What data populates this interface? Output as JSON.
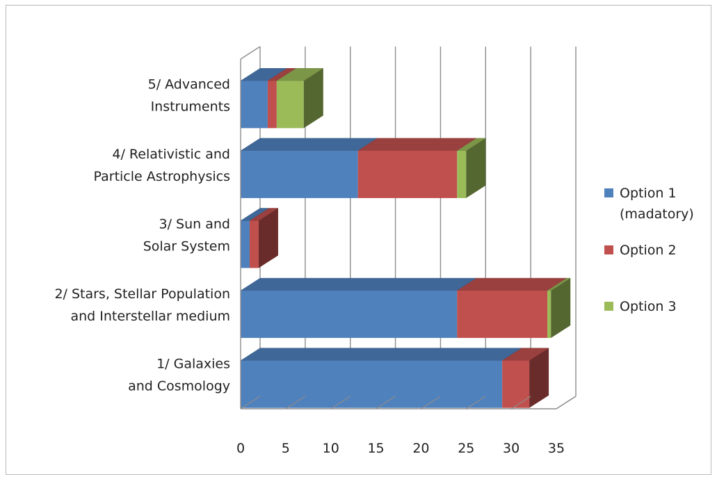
{
  "chart_data": {
    "type": "bar",
    "orientation": "horizontal",
    "stacked": true,
    "style": "3d",
    "categories": [
      "1/ Galaxies\nand Cosmology",
      "2/ Stars, Stellar Population\nand Interstellar medium",
      "3/ Sun and\nSolar System",
      "4/ Relativistic and\nParticle Astrophysics",
      "5/ Advanced\nInstruments"
    ],
    "series": [
      {
        "name": "Option 1\n(madatory)",
        "values": [
          29,
          24,
          1,
          13,
          3
        ],
        "color": "#4f81bd"
      },
      {
        "name": "Option 2",
        "values": [
          3,
          10,
          1,
          11,
          1
        ],
        "color": "#c0504d"
      },
      {
        "name": "Option 3",
        "values": [
          0,
          0.4,
          0,
          1,
          3
        ],
        "color": "#9bbb59"
      }
    ],
    "title": "",
    "xlabel": "",
    "ylabel": "",
    "xlim": [
      0,
      35
    ],
    "xticks": [
      "0",
      "5",
      "10",
      "15",
      "20",
      "25",
      "30",
      "35"
    ],
    "grid": true,
    "legend_position": "right"
  }
}
